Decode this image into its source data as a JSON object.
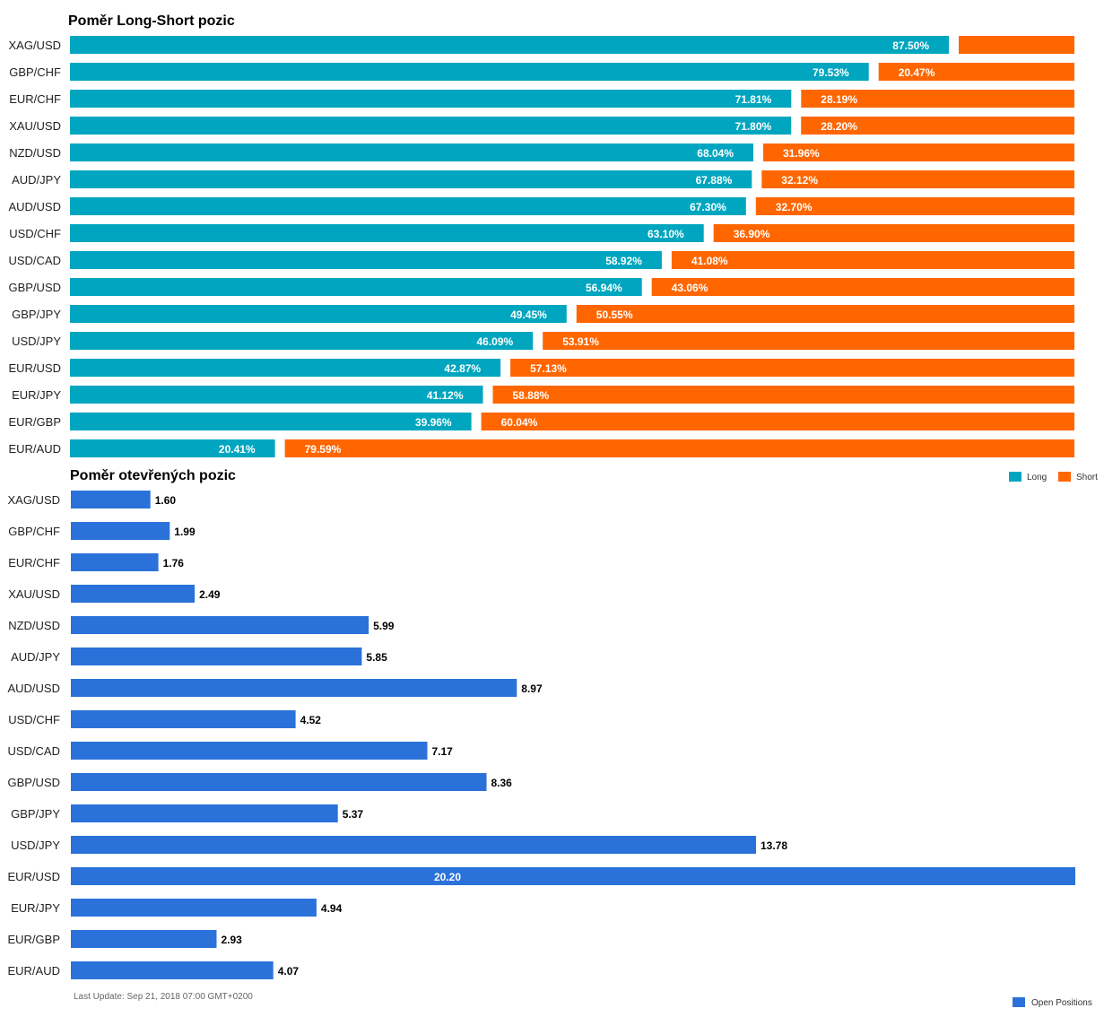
{
  "colors": {
    "long": "#00a6bf",
    "short": "#ff6600",
    "open": "#2a72d9"
  },
  "chart_data": [
    {
      "type": "bar",
      "orientation": "horizontal",
      "stacked": true,
      "title": "Poměr Long-Short pozic",
      "categories": [
        "XAG/USD",
        "GBP/CHF",
        "EUR/CHF",
        "XAU/USD",
        "NZD/USD",
        "AUD/JPY",
        "AUD/USD",
        "USD/CHF",
        "USD/CAD",
        "GBP/USD",
        "GBP/JPY",
        "USD/JPY",
        "EUR/USD",
        "EUR/JPY",
        "EUR/GBP",
        "EUR/AUD"
      ],
      "series": [
        {
          "name": "Long",
          "values": [
            87.5,
            79.53,
            71.81,
            71.8,
            68.04,
            67.88,
            67.3,
            63.1,
            58.92,
            56.94,
            49.45,
            46.09,
            42.87,
            41.12,
            39.96,
            20.41
          ],
          "labels": [
            "87.50%",
            "79.53%",
            "71.81%",
            "71.80%",
            "68.04%",
            "67.88%",
            "67.30%",
            "63.10%",
            "58.92%",
            "56.94%",
            "49.45%",
            "46.09%",
            "42.87%",
            "41.12%",
            "39.96%",
            "20.41%"
          ]
        },
        {
          "name": "Short",
          "values": [
            12.5,
            20.47,
            28.19,
            28.2,
            31.96,
            32.12,
            32.7,
            36.9,
            41.08,
            43.06,
            50.55,
            53.91,
            57.13,
            58.88,
            60.04,
            79.59
          ],
          "labels": [
            "",
            "20.47%",
            "28.19%",
            "28.20%",
            "31.96%",
            "32.12%",
            "32.70%",
            "36.90%",
            "41.08%",
            "43.06%",
            "50.55%",
            "53.91%",
            "57.13%",
            "58.88%",
            "60.04%",
            "79.59%"
          ]
        }
      ],
      "xlim": [
        0,
        100
      ],
      "legend": "bottom-right",
      "grid": false
    },
    {
      "type": "bar",
      "orientation": "horizontal",
      "title": "Poměr otevřených pozic",
      "categories": [
        "XAG/USD",
        "GBP/CHF",
        "EUR/CHF",
        "XAU/USD",
        "NZD/USD",
        "AUD/JPY",
        "AUD/USD",
        "USD/CHF",
        "USD/CAD",
        "GBP/USD",
        "GBP/JPY",
        "USD/JPY",
        "EUR/USD",
        "EUR/JPY",
        "EUR/GBP",
        "EUR/AUD"
      ],
      "series": [
        {
          "name": "Open Positions",
          "values": [
            1.6,
            1.99,
            1.76,
            2.49,
            5.99,
            5.85,
            8.97,
            4.52,
            7.17,
            8.36,
            5.37,
            13.78,
            20.2,
            4.94,
            2.93,
            4.07
          ],
          "labels": [
            "1.60",
            "1.99",
            "1.76",
            "2.49",
            "5.99",
            "5.85",
            "8.97",
            "4.52",
            "7.17",
            "8.36",
            "5.37",
            "13.78",
            "20.20",
            "4.94",
            "2.93",
            "4.07"
          ]
        }
      ],
      "xlim": [
        0,
        20.2
      ],
      "legend": "bottom-right",
      "grid": false
    }
  ],
  "footer": {
    "last_update": "Last Update: Sep 21, 2018 07:00 GMT+0200"
  }
}
